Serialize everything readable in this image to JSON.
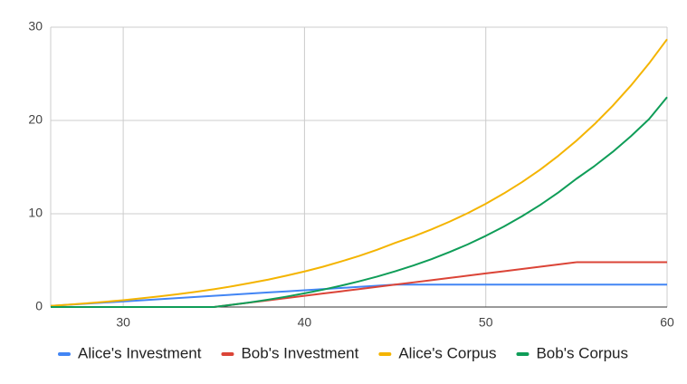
{
  "chart_data": {
    "type": "line",
    "x": [
      26,
      27,
      28,
      29,
      30,
      31,
      32,
      33,
      34,
      35,
      36,
      37,
      38,
      39,
      40,
      41,
      42,
      43,
      44,
      45,
      46,
      47,
      48,
      49,
      50,
      51,
      52,
      53,
      54,
      55,
      56,
      57,
      58,
      59,
      60
    ],
    "series": [
      {
        "name": "Alice's Investment",
        "color": "#4285f4",
        "values": [
          0.12,
          0.24,
          0.36,
          0.48,
          0.6,
          0.72,
          0.84,
          0.96,
          1.08,
          1.2,
          1.32,
          1.44,
          1.56,
          1.68,
          1.8,
          1.92,
          2.04,
          2.16,
          2.28,
          2.4,
          2.4,
          2.4,
          2.4,
          2.4,
          2.4,
          2.4,
          2.4,
          2.4,
          2.4,
          2.4,
          2.4,
          2.4,
          2.4,
          2.4,
          2.4
        ]
      },
      {
        "name": "Bob's Investment",
        "color": "#db4437",
        "values": [
          0,
          0,
          0,
          0,
          0,
          0,
          0,
          0,
          0,
          0,
          0.24,
          0.48,
          0.72,
          0.96,
          1.2,
          1.44,
          1.68,
          1.92,
          2.16,
          2.4,
          2.64,
          2.88,
          3.12,
          3.36,
          3.6,
          3.84,
          4.08,
          4.32,
          4.56,
          4.8,
          4.8,
          4.8,
          4.8,
          4.8,
          4.8
        ]
      },
      {
        "name": "Alice's Corpus",
        "color": "#f4b400",
        "values": [
          0.12,
          0.25,
          0.4,
          0.56,
          0.73,
          0.93,
          1.14,
          1.37,
          1.63,
          1.91,
          2.22,
          2.57,
          2.94,
          3.36,
          3.81,
          4.31,
          4.87,
          5.47,
          6.14,
          6.87,
          7.56,
          8.32,
          9.15,
          10.06,
          11.07,
          12.18,
          13.39,
          14.73,
          16.21,
          17.83,
          19.61,
          21.57,
          23.73,
          26.1,
          28.71
        ]
      },
      {
        "name": "Bob's Corpus",
        "color": "#0f9d58",
        "values": [
          0,
          0,
          0,
          0,
          0,
          0,
          0,
          0,
          0,
          0,
          0.24,
          0.5,
          0.79,
          1.11,
          1.47,
          1.85,
          2.28,
          2.75,
          3.26,
          3.83,
          4.45,
          5.13,
          5.89,
          6.71,
          7.63,
          8.63,
          9.73,
          10.94,
          12.28,
          13.75,
          15.12,
          16.63,
          18.3,
          20.13,
          22.5
        ]
      }
    ],
    "xlim": [
      26,
      60
    ],
    "xticks": [
      30,
      40,
      50,
      60
    ],
    "ylim": [
      0,
      30
    ],
    "yticks": [
      0,
      10,
      20,
      30
    ],
    "grid": true,
    "legend": "bottom"
  }
}
